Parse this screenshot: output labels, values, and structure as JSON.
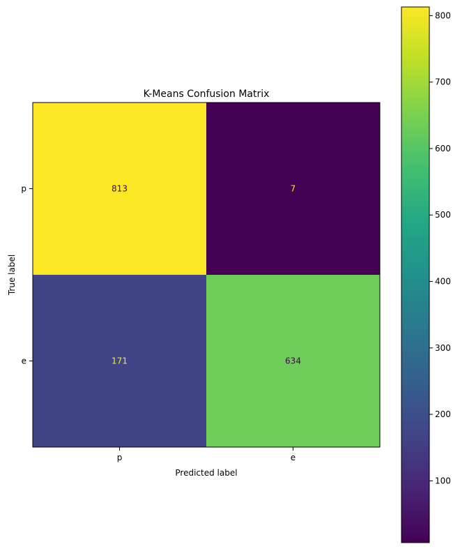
{
  "chart_data": {
    "type": "heatmap",
    "title": "K-Means Confusion Matrix",
    "xlabel": "Predicted label",
    "ylabel": "True label",
    "x_categories": [
      "p",
      "e"
    ],
    "y_categories": [
      "p",
      "e"
    ],
    "matrix": [
      [
        813,
        7
      ],
      [
        171,
        634
      ]
    ],
    "colormap": "viridis",
    "colorbar": {
      "min": 7,
      "max": 813,
      "ticks": [
        100,
        200,
        300,
        400,
        500,
        600,
        700,
        800
      ]
    },
    "colors": {
      "text_on_dark": "#fde725",
      "text_on_light": "#440154"
    }
  }
}
